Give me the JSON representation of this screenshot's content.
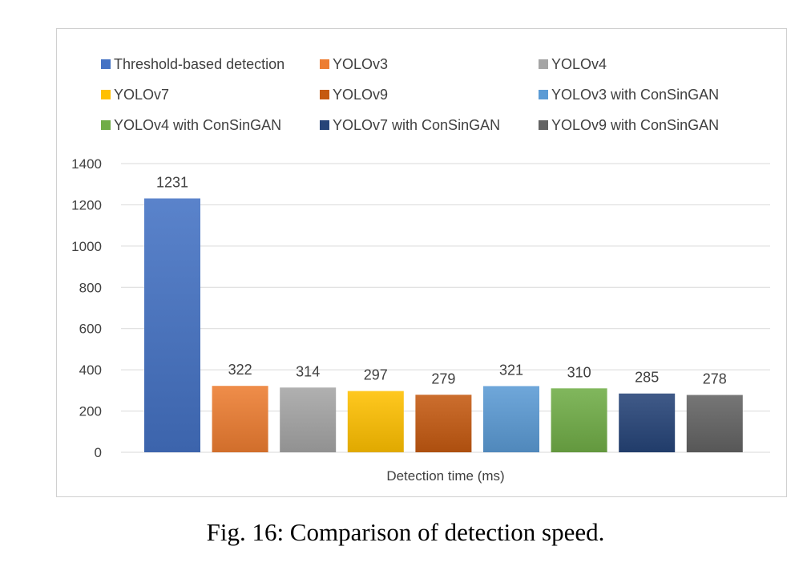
{
  "chart_data": {
    "type": "bar",
    "title": "",
    "xlabel": "Detection time (ms)",
    "ylabel": "",
    "ylim": [
      0,
      1400
    ],
    "yticks": [
      0,
      200,
      400,
      600,
      800,
      1000,
      1200,
      1400
    ],
    "grid": true,
    "legend_position": "top",
    "series": [
      {
        "name": "Threshold-based detection",
        "value": 1231,
        "color": "#4472C4"
      },
      {
        "name": "YOLOv3",
        "value": 322,
        "color": "#ED7D31"
      },
      {
        "name": "YOLOv4",
        "value": 314,
        "color": "#A5A5A5"
      },
      {
        "name": "YOLOv7",
        "value": 297,
        "color": "#FFC000"
      },
      {
        "name": "YOLOv9",
        "value": 279,
        "color": "#C55A11"
      },
      {
        "name": "YOLOv3 with ConSinGAN",
        "value": 321,
        "color": "#5B9BD5"
      },
      {
        "name": "YOLOv4 with ConSinGAN",
        "value": 310,
        "color": "#70AD47"
      },
      {
        "name": "YOLOv7 with ConSinGAN",
        "value": 285,
        "color": "#264478"
      },
      {
        "name": "YOLOv9 with ConSinGAN",
        "value": 278,
        "color": "#636363"
      }
    ]
  },
  "caption": "Fig. 16: Comparison of detection speed."
}
